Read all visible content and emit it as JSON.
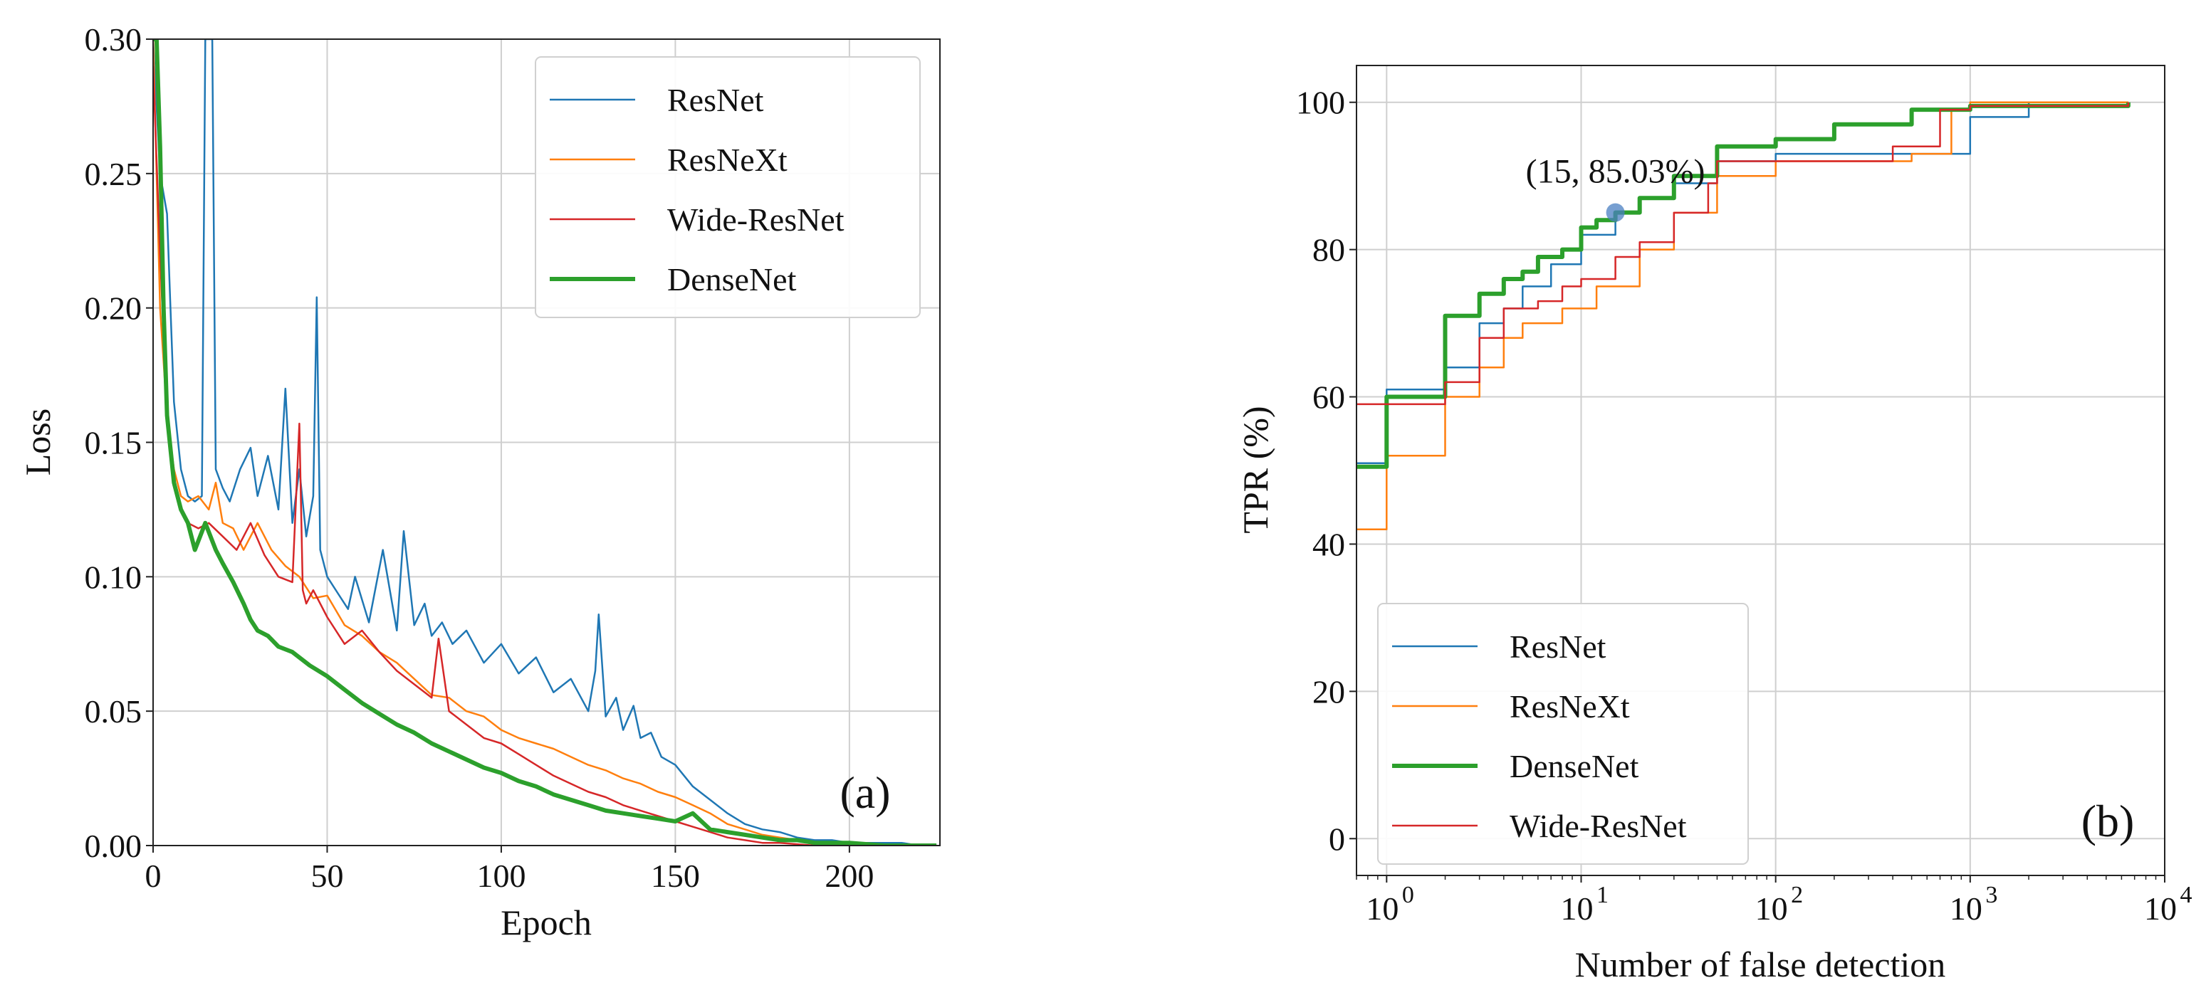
{
  "chart_data": [
    {
      "panel": "(a)",
      "type": "line",
      "xlabel": "Epoch",
      "ylabel": "Loss",
      "xlim": [
        0,
        226
      ],
      "ylim": [
        0,
        0.3
      ],
      "xticks": [
        0,
        50,
        100,
        150,
        200
      ],
      "xtick_labels": [
        "0",
        "50",
        "100",
        "150",
        "200"
      ],
      "yticks": [
        0,
        0.05,
        0.1,
        0.15,
        0.2,
        0.25,
        0.3
      ],
      "ytick_labels": [
        "0.00",
        "0.05",
        "0.10",
        "0.15",
        "0.20",
        "0.25",
        "0.30"
      ],
      "grid": true,
      "legend_position": "top-right",
      "series": [
        {
          "name": "ResNet",
          "color": "#1f77b4",
          "width": 2.5,
          "x": [
            0,
            2,
            4,
            5,
            6,
            8,
            10,
            12,
            14,
            15,
            16,
            17,
            18,
            20,
            22,
            25,
            28,
            30,
            33,
            36,
            38,
            40,
            42,
            44,
            46,
            47,
            48,
            50,
            53,
            56,
            58,
            62,
            66,
            70,
            72,
            75,
            78,
            80,
            83,
            86,
            90,
            95,
            100,
            105,
            110,
            115,
            120,
            125,
            127,
            128,
            130,
            133,
            135,
            138,
            140,
            143,
            146,
            150,
            155,
            160,
            165,
            170,
            175,
            180,
            185,
            190,
            195,
            200,
            205,
            210,
            215,
            220,
            225
          ],
          "y": [
            0.3,
            0.25,
            0.235,
            0.2,
            0.165,
            0.14,
            0.13,
            0.128,
            0.13,
            0.3,
            0.3,
            0.3,
            0.14,
            0.133,
            0.128,
            0.14,
            0.148,
            0.13,
            0.145,
            0.125,
            0.17,
            0.12,
            0.14,
            0.115,
            0.13,
            0.204,
            0.11,
            0.1,
            0.094,
            0.088,
            0.1,
            0.083,
            0.11,
            0.08,
            0.117,
            0.082,
            0.09,
            0.078,
            0.083,
            0.075,
            0.08,
            0.068,
            0.075,
            0.064,
            0.07,
            0.057,
            0.062,
            0.05,
            0.065,
            0.086,
            0.048,
            0.055,
            0.043,
            0.052,
            0.04,
            0.042,
            0.033,
            0.03,
            0.022,
            0.017,
            0.012,
            0.008,
            0.006,
            0.005,
            0.003,
            0.002,
            0.002,
            0.001,
            0.001,
            0.001,
            0.001,
            0.0,
            0.0
          ]
        },
        {
          "name": "ResNeXt",
          "color": "#ff7f0e",
          "width": 2.5,
          "x": [
            0,
            2,
            4,
            6,
            8,
            10,
            13,
            16,
            18,
            20,
            23,
            26,
            30,
            34,
            38,
            42,
            46,
            50,
            55,
            60,
            65,
            70,
            75,
            80,
            85,
            90,
            95,
            100,
            105,
            110,
            115,
            120,
            125,
            130,
            135,
            140,
            145,
            150,
            155,
            160,
            165,
            170,
            175,
            180,
            185,
            190,
            195,
            200,
            210,
            220,
            225
          ],
          "y": [
            0.3,
            0.2,
            0.16,
            0.14,
            0.13,
            0.128,
            0.13,
            0.125,
            0.135,
            0.12,
            0.118,
            0.11,
            0.12,
            0.11,
            0.104,
            0.1,
            0.092,
            0.093,
            0.082,
            0.078,
            0.072,
            0.068,
            0.062,
            0.056,
            0.055,
            0.05,
            0.048,
            0.043,
            0.04,
            0.038,
            0.036,
            0.033,
            0.03,
            0.028,
            0.025,
            0.023,
            0.02,
            0.018,
            0.015,
            0.012,
            0.008,
            0.006,
            0.004,
            0.003,
            0.002,
            0.001,
            0.001,
            0.001,
            0.0,
            0.0,
            0.0
          ]
        },
        {
          "name": "Wide-ResNet",
          "color": "#d62728",
          "width": 2.5,
          "x": [
            0,
            2,
            4,
            6,
            8,
            10,
            13,
            16,
            20,
            24,
            28,
            32,
            36,
            40,
            42,
            43,
            44,
            46,
            50,
            55,
            60,
            65,
            70,
            75,
            80,
            82,
            85,
            90,
            95,
            100,
            105,
            110,
            115,
            120,
            125,
            130,
            135,
            140,
            145,
            150,
            155,
            160,
            165,
            170,
            175,
            180,
            190,
            200,
            210,
            225
          ],
          "y": [
            0.29,
            0.22,
            0.16,
            0.135,
            0.125,
            0.12,
            0.118,
            0.12,
            0.115,
            0.11,
            0.12,
            0.108,
            0.1,
            0.098,
            0.157,
            0.095,
            0.09,
            0.095,
            0.085,
            0.075,
            0.08,
            0.072,
            0.065,
            0.06,
            0.055,
            0.077,
            0.05,
            0.045,
            0.04,
            0.038,
            0.034,
            0.03,
            0.026,
            0.023,
            0.02,
            0.018,
            0.015,
            0.013,
            0.011,
            0.009,
            0.007,
            0.005,
            0.003,
            0.002,
            0.001,
            0.001,
            0.0,
            0.0,
            0.0,
            0.0
          ]
        },
        {
          "name": "DenseNet",
          "color": "#2ca02c",
          "width": 6,
          "x": [
            0,
            1,
            2,
            3,
            4,
            6,
            8,
            10,
            12,
            15,
            18,
            20,
            23,
            26,
            28,
            30,
            33,
            36,
            40,
            45,
            50,
            55,
            60,
            65,
            70,
            75,
            80,
            85,
            90,
            95,
            100,
            105,
            110,
            115,
            120,
            125,
            130,
            135,
            140,
            145,
            150,
            155,
            160,
            165,
            170,
            175,
            180,
            185,
            190,
            200,
            210,
            225
          ],
          "y": [
            0.3,
            0.3,
            0.26,
            0.2,
            0.16,
            0.135,
            0.125,
            0.12,
            0.11,
            0.12,
            0.11,
            0.105,
            0.098,
            0.09,
            0.084,
            0.08,
            0.078,
            0.074,
            0.072,
            0.067,
            0.063,
            0.058,
            0.053,
            0.049,
            0.045,
            0.042,
            0.038,
            0.035,
            0.032,
            0.029,
            0.027,
            0.024,
            0.022,
            0.019,
            0.017,
            0.015,
            0.013,
            0.012,
            0.011,
            0.01,
            0.009,
            0.012,
            0.006,
            0.005,
            0.004,
            0.003,
            0.002,
            0.002,
            0.001,
            0.001,
            0.0,
            0.0
          ]
        }
      ]
    },
    {
      "panel": "(b)",
      "type": "line",
      "step": true,
      "xscale": "log",
      "xlabel": "Number of false detection",
      "ylabel": "TPR (%)",
      "xlim": [
        0.7,
        10000
      ],
      "ylim": [
        -5,
        105
      ],
      "xticks": [
        1,
        10,
        100,
        1000,
        10000
      ],
      "xtick_bases": [
        "10",
        "10",
        "10",
        "10",
        "10"
      ],
      "xtick_exps": [
        "0",
        "1",
        "2",
        "3",
        "4"
      ],
      "yticks": [
        0,
        20,
        40,
        60,
        80,
        100
      ],
      "ytick_labels": [
        "0",
        "20",
        "40",
        "60",
        "80",
        "100"
      ],
      "grid": true,
      "legend_position": "bottom-left",
      "annotation": {
        "text": "(15, 85.03%)",
        "x": 15,
        "y": 85.03,
        "color": "#4a7fc1"
      },
      "series": [
        {
          "name": "ResNet",
          "color": "#1f77b4",
          "width": 2.5,
          "x": [
            0.7,
            1,
            2,
            3,
            4,
            5,
            7,
            10,
            15,
            20,
            30,
            50,
            100,
            300,
            900,
            1000,
            2000,
            6500
          ],
          "y": [
            51,
            61,
            64,
            70,
            72,
            75,
            78,
            82,
            85,
            87,
            89,
            92,
            93,
            93,
            93,
            98,
            100,
            100
          ]
        },
        {
          "name": "ResNeXt",
          "color": "#ff7f0e",
          "width": 2.5,
          "x": [
            0.7,
            1,
            2,
            3,
            4,
            5,
            8,
            12,
            20,
            30,
            50,
            100,
            300,
            500,
            800,
            1000,
            6500
          ],
          "y": [
            42,
            52,
            60,
            64,
            68,
            70,
            72,
            75,
            80,
            85,
            90,
            92,
            92,
            93,
            99,
            100,
            100
          ]
        },
        {
          "name": "DenseNet",
          "color": "#2ca02c",
          "width": 6,
          "x": [
            0.7,
            1,
            2,
            3,
            4,
            5,
            6,
            8,
            10,
            12,
            15,
            20,
            30,
            50,
            60,
            100,
            200,
            500,
            1000,
            6500
          ],
          "y": [
            50.5,
            60,
            71,
            74,
            76,
            77,
            79,
            80,
            83,
            84,
            85.03,
            87,
            90,
            94,
            94,
            95,
            97,
            99,
            99.5,
            100
          ]
        },
        {
          "name": "Wide-ResNet",
          "color": "#d62728",
          "width": 2.5,
          "x": [
            0.7,
            1,
            2,
            3,
            4,
            6,
            8,
            10,
            15,
            20,
            30,
            45,
            50,
            200,
            400,
            700,
            1000,
            6500
          ],
          "y": [
            59,
            59,
            62,
            68,
            72,
            73,
            75,
            76,
            79,
            81,
            85,
            89,
            92,
            92,
            94,
            99,
            99.5,
            100
          ]
        }
      ]
    }
  ]
}
